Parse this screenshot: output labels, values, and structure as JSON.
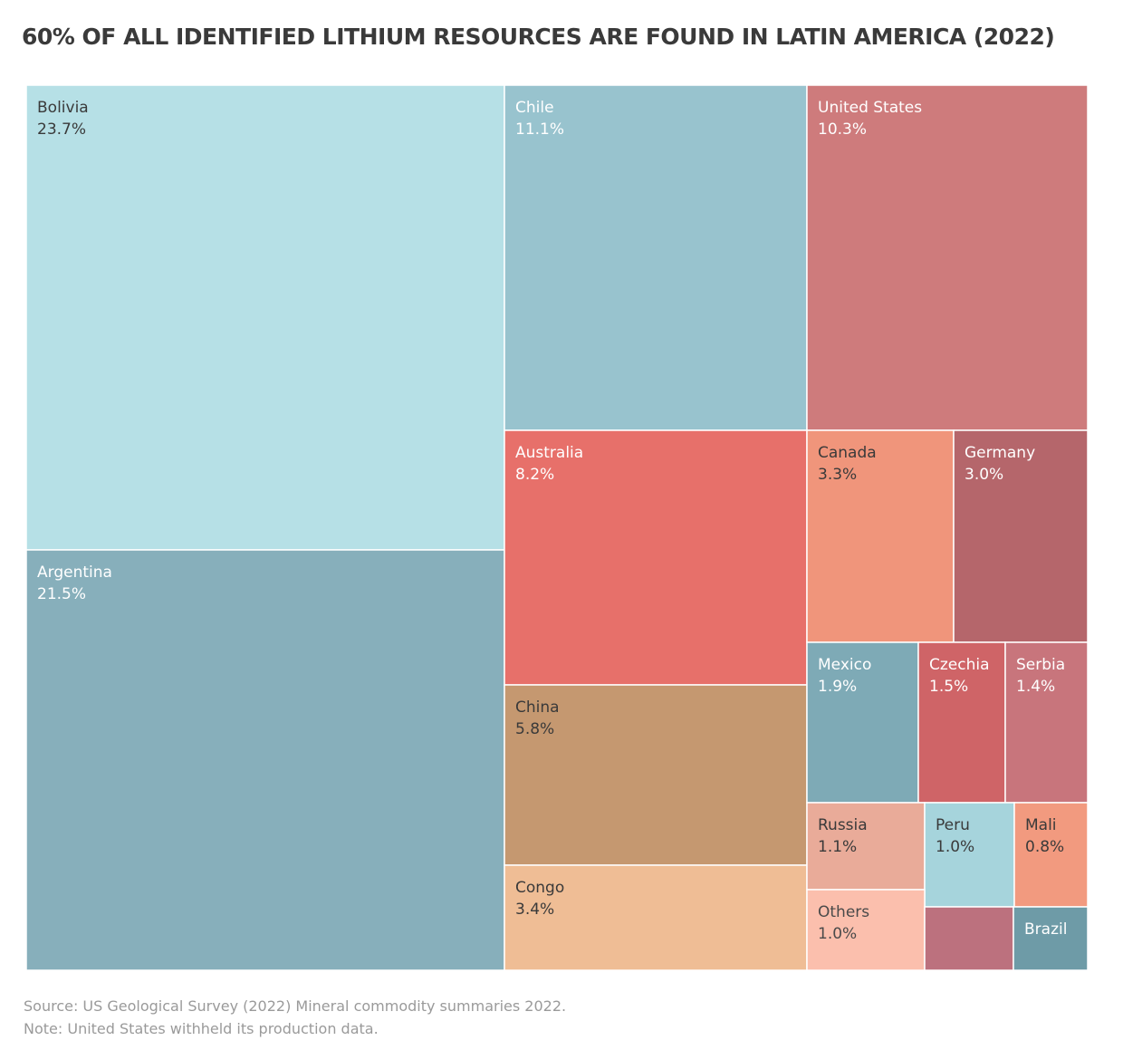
{
  "chart_data": {
    "type": "treemap",
    "title": "60% OF ALL IDENTIFIED LITHIUM RESOURCES ARE FOUND IN LATIN AMERICA (2022)",
    "unit": "%",
    "items": [
      {
        "name": "Bolivia",
        "label": "23.7%",
        "value": 23.7,
        "color": "#b6e0e6",
        "text_color": "#3a3a3a"
      },
      {
        "name": "Argentina",
        "label": "21.5%",
        "value": 21.5,
        "color": "#87afbb",
        "text_color": "#ffffff"
      },
      {
        "name": "Chile",
        "label": "11.1%",
        "value": 11.1,
        "color": "#98c3ce",
        "text_color": "#ffffff"
      },
      {
        "name": "United States",
        "label": "10.3%",
        "value": 10.3,
        "color": "#ce7b7c",
        "text_color": "#ffffff"
      },
      {
        "name": "Australia",
        "label": "8.2%",
        "value": 8.2,
        "color": "#e7706a",
        "text_color": "#ffffff"
      },
      {
        "name": "China",
        "label": "5.8%",
        "value": 5.8,
        "color": "#c59870",
        "text_color": "#3a3a3a"
      },
      {
        "name": "Congo",
        "label": "3.4%",
        "value": 3.4,
        "color": "#efbd95",
        "text_color": "#3a3a3a"
      },
      {
        "name": "Canada",
        "label": "3.3%",
        "value": 3.3,
        "color": "#f0957b",
        "text_color": "#3a3a3a"
      },
      {
        "name": "Germany",
        "label": "3.0%",
        "value": 3.0,
        "color": "#b5666b",
        "text_color": "#ffffff"
      },
      {
        "name": "Mexico",
        "label": "1.9%",
        "value": 1.9,
        "color": "#7eaab6",
        "text_color": "#ffffff"
      },
      {
        "name": "Czechia",
        "label": "1.5%",
        "value": 1.5,
        "color": "#cf6467",
        "text_color": "#ffffff"
      },
      {
        "name": "Serbia",
        "label": "1.4%",
        "value": 1.4,
        "color": "#c8757c",
        "text_color": "#ffffff"
      },
      {
        "name": "Russia",
        "label": "1.1%",
        "value": 1.1,
        "color": "#e9ab99",
        "text_color": "#3a3a3a"
      },
      {
        "name": "Peru",
        "label": "1.0%",
        "value": 1.0,
        "color": "#a6d4dc",
        "text_color": "#3a3a3a"
      },
      {
        "name": "Mali",
        "label": "0.8%",
        "value": 0.8,
        "color": "#f29a7f",
        "text_color": "#3a3a3a"
      },
      {
        "name": "Others",
        "label": "1.0%",
        "value": 1.0,
        "color": "#fbbfad",
        "text_color": "#4a4a4a"
      },
      {
        "name": "",
        "label": "",
        "value": null,
        "color": "#bc717e",
        "text_color": "#ffffff"
      },
      {
        "name": "Brazil",
        "label": "",
        "value": null,
        "color": "#6e9ba7",
        "text_color": "#ffffff"
      }
    ]
  },
  "footer": {
    "source": "Source: US Geological Survey (2022) Mineral commodity summaries 2022.",
    "note": "Note: United States withheld its production data."
  }
}
